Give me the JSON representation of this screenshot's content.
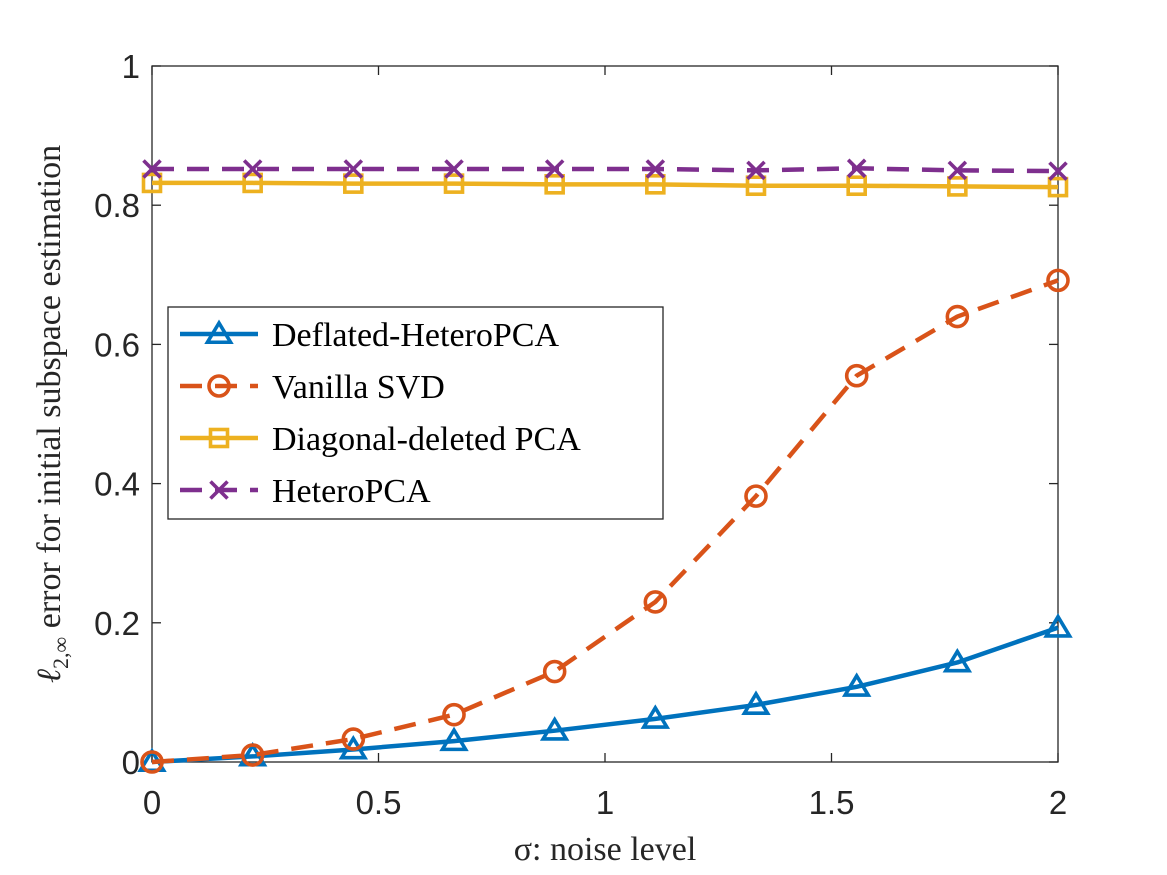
{
  "chart_data": {
    "type": "line",
    "title": "",
    "xlabel": "σ: noise level",
    "ylabel_prefix": "ℓ",
    "ylabel_sub": "2,∞",
    "ylabel_rest": " error for initial subspace estimation",
    "xlim": [
      0,
      2
    ],
    "ylim": [
      0,
      1
    ],
    "grid": false,
    "legend_position": "center-left",
    "x": [
      0,
      0.2222,
      0.4444,
      0.6667,
      0.8889,
      1.1111,
      1.3333,
      1.5556,
      1.7778,
      2.0
    ],
    "x_ticks": [
      0,
      0.5,
      1,
      1.5,
      2
    ],
    "x_tick_labels": [
      "0",
      "0.5",
      "1",
      "1.5",
      "2"
    ],
    "y_ticks": [
      0,
      0.2,
      0.4,
      0.6,
      0.8,
      1
    ],
    "y_tick_labels": [
      "0",
      "0.2",
      "0.4",
      "0.6",
      "0.8",
      "1"
    ],
    "series": [
      {
        "name": "Deflated-HeteroPCA",
        "color": "#0072BD",
        "dash": "solid",
        "marker": "triangle",
        "values": [
          0.0,
          0.008,
          0.018,
          0.03,
          0.045,
          0.062,
          0.082,
          0.108,
          0.143,
          0.193
        ]
      },
      {
        "name": "Vanilla SVD",
        "color": "#D95319",
        "dash": "dashed",
        "marker": "circle",
        "values": [
          0.0,
          0.01,
          0.033,
          0.068,
          0.13,
          0.23,
          0.382,
          0.555,
          0.64,
          0.692
        ]
      },
      {
        "name": "Diagonal-deleted PCA",
        "color": "#EDB120",
        "dash": "solid",
        "marker": "square",
        "values": [
          0.832,
          0.832,
          0.831,
          0.831,
          0.83,
          0.83,
          0.828,
          0.828,
          0.827,
          0.826
        ]
      },
      {
        "name": "HeteroPCA",
        "color": "#7E2F8E",
        "dash": "dashed",
        "marker": "x",
        "values": [
          0.852,
          0.852,
          0.852,
          0.852,
          0.852,
          0.852,
          0.85,
          0.853,
          0.85,
          0.849
        ]
      }
    ]
  }
}
